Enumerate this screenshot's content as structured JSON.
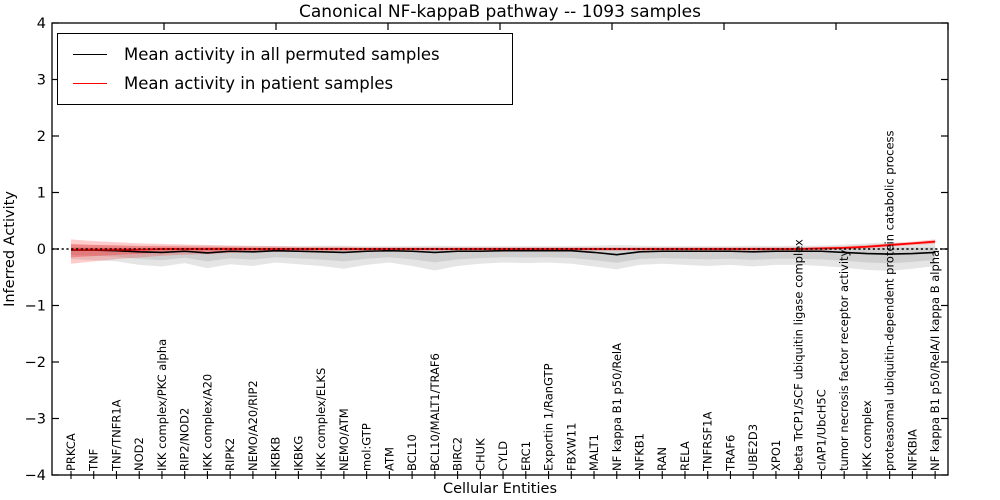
{
  "legend": {
    "items": [
      {
        "label": "Mean activity in all permuted samples",
        "color": "#000000"
      },
      {
        "label": "Mean activity in patient samples",
        "color": "#ff0000"
      }
    ]
  },
  "chart_data": {
    "type": "line",
    "title": "Canonical NF-kappaB pathway -- 1093 samples",
    "xlabel": "Cellular Entities",
    "ylabel": "Inferred Activity",
    "ylim": [
      -4,
      4
    ],
    "ytick_labels": [
      "4",
      "3",
      "2",
      "1",
      "0",
      "−1",
      "−2",
      "−3",
      "−4"
    ],
    "ytick_values": [
      4,
      3,
      2,
      1,
      0,
      -1,
      -2,
      -3,
      -4
    ],
    "zero_line": 0,
    "grid": false,
    "legend_position": "upper left",
    "categories": [
      "PRKCA",
      "TNF",
      "TNF/TNFR1A",
      "NOD2",
      "IKK complex/PKC alpha",
      "RIP2/NOD2",
      "IKK complex/A20",
      "RIPK2",
      "NEMO/A20/RIP2",
      "IKBKB",
      "IKBKG",
      "IKK complex/ELKS",
      "NEMO/ATM",
      "mol:GTP",
      "ATM",
      "BCL10",
      "BCL10/MALT1/TRAF6",
      "BIRC2",
      "CHUK",
      "CYLD",
      "ERC1",
      "Exportin 1/RanGTP",
      "FBXW11",
      "MALT1",
      "NF kappa B1 p50/RelA",
      "NFKB1",
      "RAN",
      "RELA",
      "TNFRSF1A",
      "TRAF6",
      "UBE2D3",
      "XPO1",
      "beta TrCP1/SCF ubiquitin ligase complex",
      "cIAP1/UbcH5C",
      "tumor necrosis factor receptor activity",
      "IKK complex",
      "proteasomal ubiquitin-dependent protein catabolic process",
      "NFKBIA",
      "NF kappa B1 p50/RelA/I kappa B alpha"
    ],
    "series": [
      {
        "name": "Mean activity in all permuted samples",
        "color": "#000000",
        "values": [
          -0.02,
          -0.02,
          -0.03,
          -0.05,
          -0.06,
          -0.04,
          -0.07,
          -0.04,
          -0.05,
          -0.03,
          -0.04,
          -0.05,
          -0.06,
          -0.04,
          -0.03,
          -0.04,
          -0.06,
          -0.04,
          -0.04,
          -0.03,
          -0.03,
          -0.03,
          -0.03,
          -0.06,
          -0.1,
          -0.05,
          -0.04,
          -0.04,
          -0.04,
          -0.04,
          -0.05,
          -0.04,
          -0.04,
          -0.04,
          -0.06,
          -0.08,
          -0.09,
          -0.08,
          -0.06
        ],
        "band_upper": [
          0.08,
          0.07,
          0.07,
          0.06,
          0.06,
          0.06,
          0.06,
          0.06,
          0.06,
          0.05,
          0.05,
          0.06,
          0.06,
          0.05,
          0.05,
          0.05,
          0.06,
          0.05,
          0.05,
          0.05,
          0.05,
          0.05,
          0.05,
          0.06,
          0.07,
          0.06,
          0.05,
          0.05,
          0.05,
          0.05,
          0.06,
          0.05,
          0.06,
          0.06,
          0.08,
          0.1,
          0.12,
          0.11,
          0.1
        ],
        "band_lower": [
          -0.18,
          -0.2,
          -0.22,
          -0.28,
          -0.31,
          -0.25,
          -0.34,
          -0.27,
          -0.3,
          -0.24,
          -0.27,
          -0.3,
          -0.35,
          -0.28,
          -0.24,
          -0.3,
          -0.38,
          -0.3,
          -0.26,
          -0.24,
          -0.25,
          -0.24,
          -0.26,
          -0.31,
          -0.36,
          -0.28,
          -0.26,
          -0.28,
          -0.3,
          -0.28,
          -0.31,
          -0.28,
          -0.28,
          -0.3,
          -0.33,
          -0.37,
          -0.39,
          -0.35,
          -0.3
        ],
        "band_color": "#000000"
      },
      {
        "name": "Mean activity in patient samples",
        "color": "#ff0000",
        "values": [
          -0.01,
          -0.01,
          -0.01,
          -0.01,
          0.0,
          0.0,
          0.0,
          0.0,
          0.0,
          0.0,
          0.0,
          0.0,
          0.0,
          0.0,
          0.0,
          0.0,
          0.0,
          0.0,
          0.0,
          0.0,
          0.0,
          0.0,
          0.0,
          0.0,
          0.0,
          0.0,
          0.0,
          0.0,
          0.0,
          0.0,
          0.0,
          0.0,
          0.0,
          0.01,
          0.02,
          0.04,
          0.07,
          0.1,
          0.13
        ],
        "band_upper": [
          0.17,
          0.14,
          0.12,
          0.1,
          0.09,
          0.08,
          0.07,
          0.06,
          0.05,
          0.05,
          0.04,
          0.04,
          0.04,
          0.03,
          0.03,
          0.03,
          0.03,
          0.03,
          0.03,
          0.03,
          0.03,
          0.03,
          0.03,
          0.03,
          0.03,
          0.03,
          0.03,
          0.03,
          0.03,
          0.03,
          0.03,
          0.03,
          0.03,
          0.04,
          0.05,
          0.07,
          0.1,
          0.13,
          0.17
        ],
        "band_lower": [
          -0.26,
          -0.22,
          -0.18,
          -0.15,
          -0.12,
          -0.1,
          -0.09,
          -0.07,
          -0.06,
          -0.05,
          -0.05,
          -0.04,
          -0.04,
          -0.04,
          -0.03,
          -0.03,
          -0.03,
          -0.03,
          -0.03,
          -0.03,
          -0.03,
          -0.03,
          -0.03,
          -0.03,
          -0.03,
          -0.03,
          -0.03,
          -0.03,
          -0.03,
          -0.03,
          -0.03,
          -0.03,
          -0.03,
          -0.02,
          -0.01,
          0.01,
          0.04,
          0.07,
          0.09
        ],
        "band_color": "#ff0000"
      }
    ]
  }
}
